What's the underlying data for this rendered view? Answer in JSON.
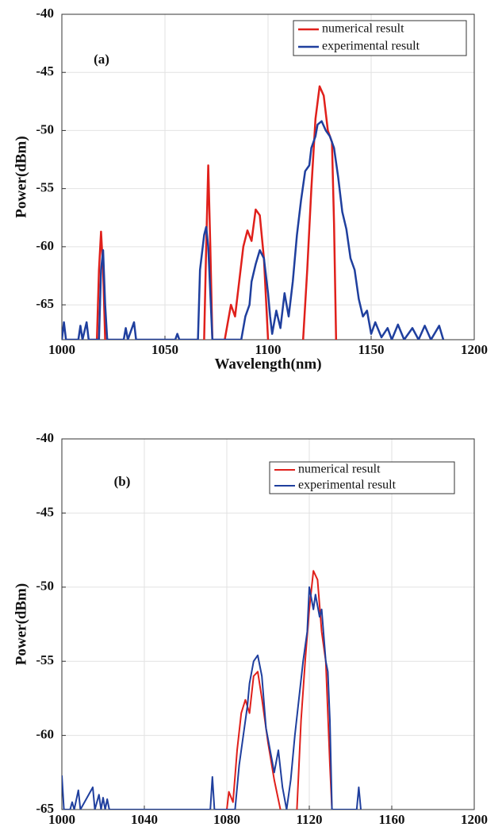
{
  "chart_data": [
    {
      "type": "line",
      "annotation": "(a)",
      "xlabel": "Wavelength(nm)",
      "ylabel": "Power(dBm)",
      "xlim": [
        1000,
        1200
      ],
      "xticks": [
        1000,
        1050,
        1100,
        1150,
        1200
      ],
      "ylim": [
        -68,
        -40
      ],
      "yticks": [
        -40,
        -45,
        -50,
        -55,
        -60,
        -65
      ],
      "grid": true,
      "legend": "upper right",
      "series": [
        {
          "name": "numerical result",
          "color": "#e0201b",
          "x": [
            1017,
            1018,
            1019,
            1020,
            1021,
            null,
            1069,
            1070,
            1071,
            1072,
            1073,
            null,
            1079,
            1082,
            1084,
            1086,
            1088,
            1090,
            1092,
            1094,
            1096,
            1098,
            1100,
            null,
            1117,
            1119,
            1121,
            1123,
            1125,
            1127,
            1129,
            1131,
            1132,
            1133
          ],
          "values": [
            -68,
            -62,
            -58.7,
            -62,
            -68,
            null,
            -68,
            -60,
            -53,
            -60,
            -68,
            null,
            -68,
            -65,
            -66,
            -63,
            -60,
            -58.6,
            -59.5,
            -56.8,
            -57.3,
            -61,
            -68,
            null,
            -68,
            -62,
            -55,
            -49,
            -46.2,
            -47,
            -50,
            -51,
            -58,
            -68
          ]
        },
        {
          "name": "experimental result",
          "color": "#1f3f9e",
          "x": [
            1000,
            1001,
            1002,
            1008,
            1009,
            1010,
            1012,
            1013,
            1018,
            1019,
            1020,
            1021,
            1022,
            1030,
            1031,
            1032,
            1035,
            1036,
            1055,
            1056,
            1057,
            1066,
            1067,
            1069,
            1070,
            1071,
            1072,
            1073,
            1087,
            1089,
            1091,
            1092,
            1094,
            1096,
            1098,
            1100,
            1101,
            1102,
            1104,
            1106,
            1108,
            1110,
            1112,
            1114,
            1116,
            1118,
            1120,
            1121,
            1123,
            1124,
            1126,
            1128,
            1130,
            1132,
            1134,
            1136,
            1138,
            1140,
            1142,
            1144,
            1146,
            1148,
            1150,
            1152,
            1155,
            1158,
            1160,
            1163,
            1166,
            1170,
            1173,
            1176,
            1179,
            1183,
            1185
          ],
          "values": [
            -68,
            -66.5,
            -68,
            -68,
            -66.8,
            -68,
            -66.5,
            -68,
            -68,
            -62,
            -60.3,
            -65,
            -68,
            -68,
            -67,
            -68,
            -66.5,
            -68,
            -68,
            -67.5,
            -68,
            -68,
            -62,
            -59,
            -58.3,
            -60,
            -64,
            -68,
            -68,
            -66,
            -65,
            -63,
            -61.5,
            -60.3,
            -61,
            -64,
            -66,
            -67.5,
            -65.5,
            -67,
            -64,
            -66,
            -63,
            -59,
            -56,
            -53.5,
            -53,
            -51.5,
            -50.5,
            -49.5,
            -49.2,
            -50,
            -50.5,
            -51.5,
            -54,
            -57,
            -58.5,
            -61,
            -62,
            -64.5,
            -66,
            -65.5,
            -67.5,
            -66.5,
            -67.8,
            -67,
            -68,
            -66.7,
            -68,
            -67,
            -68,
            -66.8,
            -68,
            -66.8,
            -68
          ]
        }
      ]
    },
    {
      "type": "line",
      "annotation": "(b)",
      "xlabel": "Wavelength(nm)",
      "ylabel": "Power(dBm)",
      "xlim": [
        1000,
        1200
      ],
      "xticks": [
        1000,
        1040,
        1080,
        1120,
        1160,
        1200
      ],
      "ylim": [
        -65,
        -40
      ],
      "yticks": [
        -40,
        -45,
        -50,
        -55,
        -60,
        -65
      ],
      "grid": true,
      "legend": "upper right",
      "series": [
        {
          "name": "numerical result",
          "color": "#e0201b",
          "x": [
            1080,
            1081,
            1083,
            1085,
            1087,
            1089,
            1091,
            1093,
            1095,
            1097,
            1100,
            1103,
            1106,
            null,
            1114,
            1116,
            1118,
            1120,
            1122,
            1124,
            1126,
            1128,
            1130,
            1131
          ],
          "values": [
            -65,
            -63.8,
            -64.5,
            -61,
            -58.5,
            -57.6,
            -58.5,
            -56,
            -55.7,
            -57.5,
            -60.5,
            -63,
            -65,
            null,
            -65,
            -59,
            -55,
            -51.5,
            -48.9,
            -49.5,
            -53,
            -55,
            -62,
            -65
          ]
        },
        {
          "name": "experimental result",
          "color": "#1f3f9e",
          "x": [
            1000,
            1001,
            1004,
            1005,
            1006,
            1008,
            1009,
            1015,
            1016,
            1018,
            1019,
            1020,
            1021,
            1022,
            1023,
            1072,
            1073,
            1074,
            1084,
            1086,
            1088,
            1090,
            1091,
            1093,
            1095,
            1097,
            1099,
            1101,
            1103,
            1105,
            1107,
            1109,
            1111,
            1113,
            1115,
            1117,
            1119,
            1120,
            1122,
            1123,
            1125,
            1126,
            1128,
            1129,
            1130,
            1131,
            1143,
            1144,
            1145
          ],
          "values": [
            -62.7,
            -65,
            -65,
            -64.5,
            -65,
            -63.7,
            -65,
            -63.5,
            -65,
            -64,
            -65,
            -64.2,
            -65,
            -64.3,
            -65,
            -65,
            -62.8,
            -65,
            -65,
            -62,
            -60,
            -58,
            -56.5,
            -55,
            -54.6,
            -56,
            -59.5,
            -61,
            -62.5,
            -61,
            -63.5,
            -65,
            -63,
            -60,
            -57.5,
            -55,
            -53,
            -50,
            -51.5,
            -50.5,
            -52,
            -51.5,
            -55,
            -55.7,
            -59,
            -65,
            -65,
            -63.5,
            -65
          ]
        }
      ]
    }
  ]
}
